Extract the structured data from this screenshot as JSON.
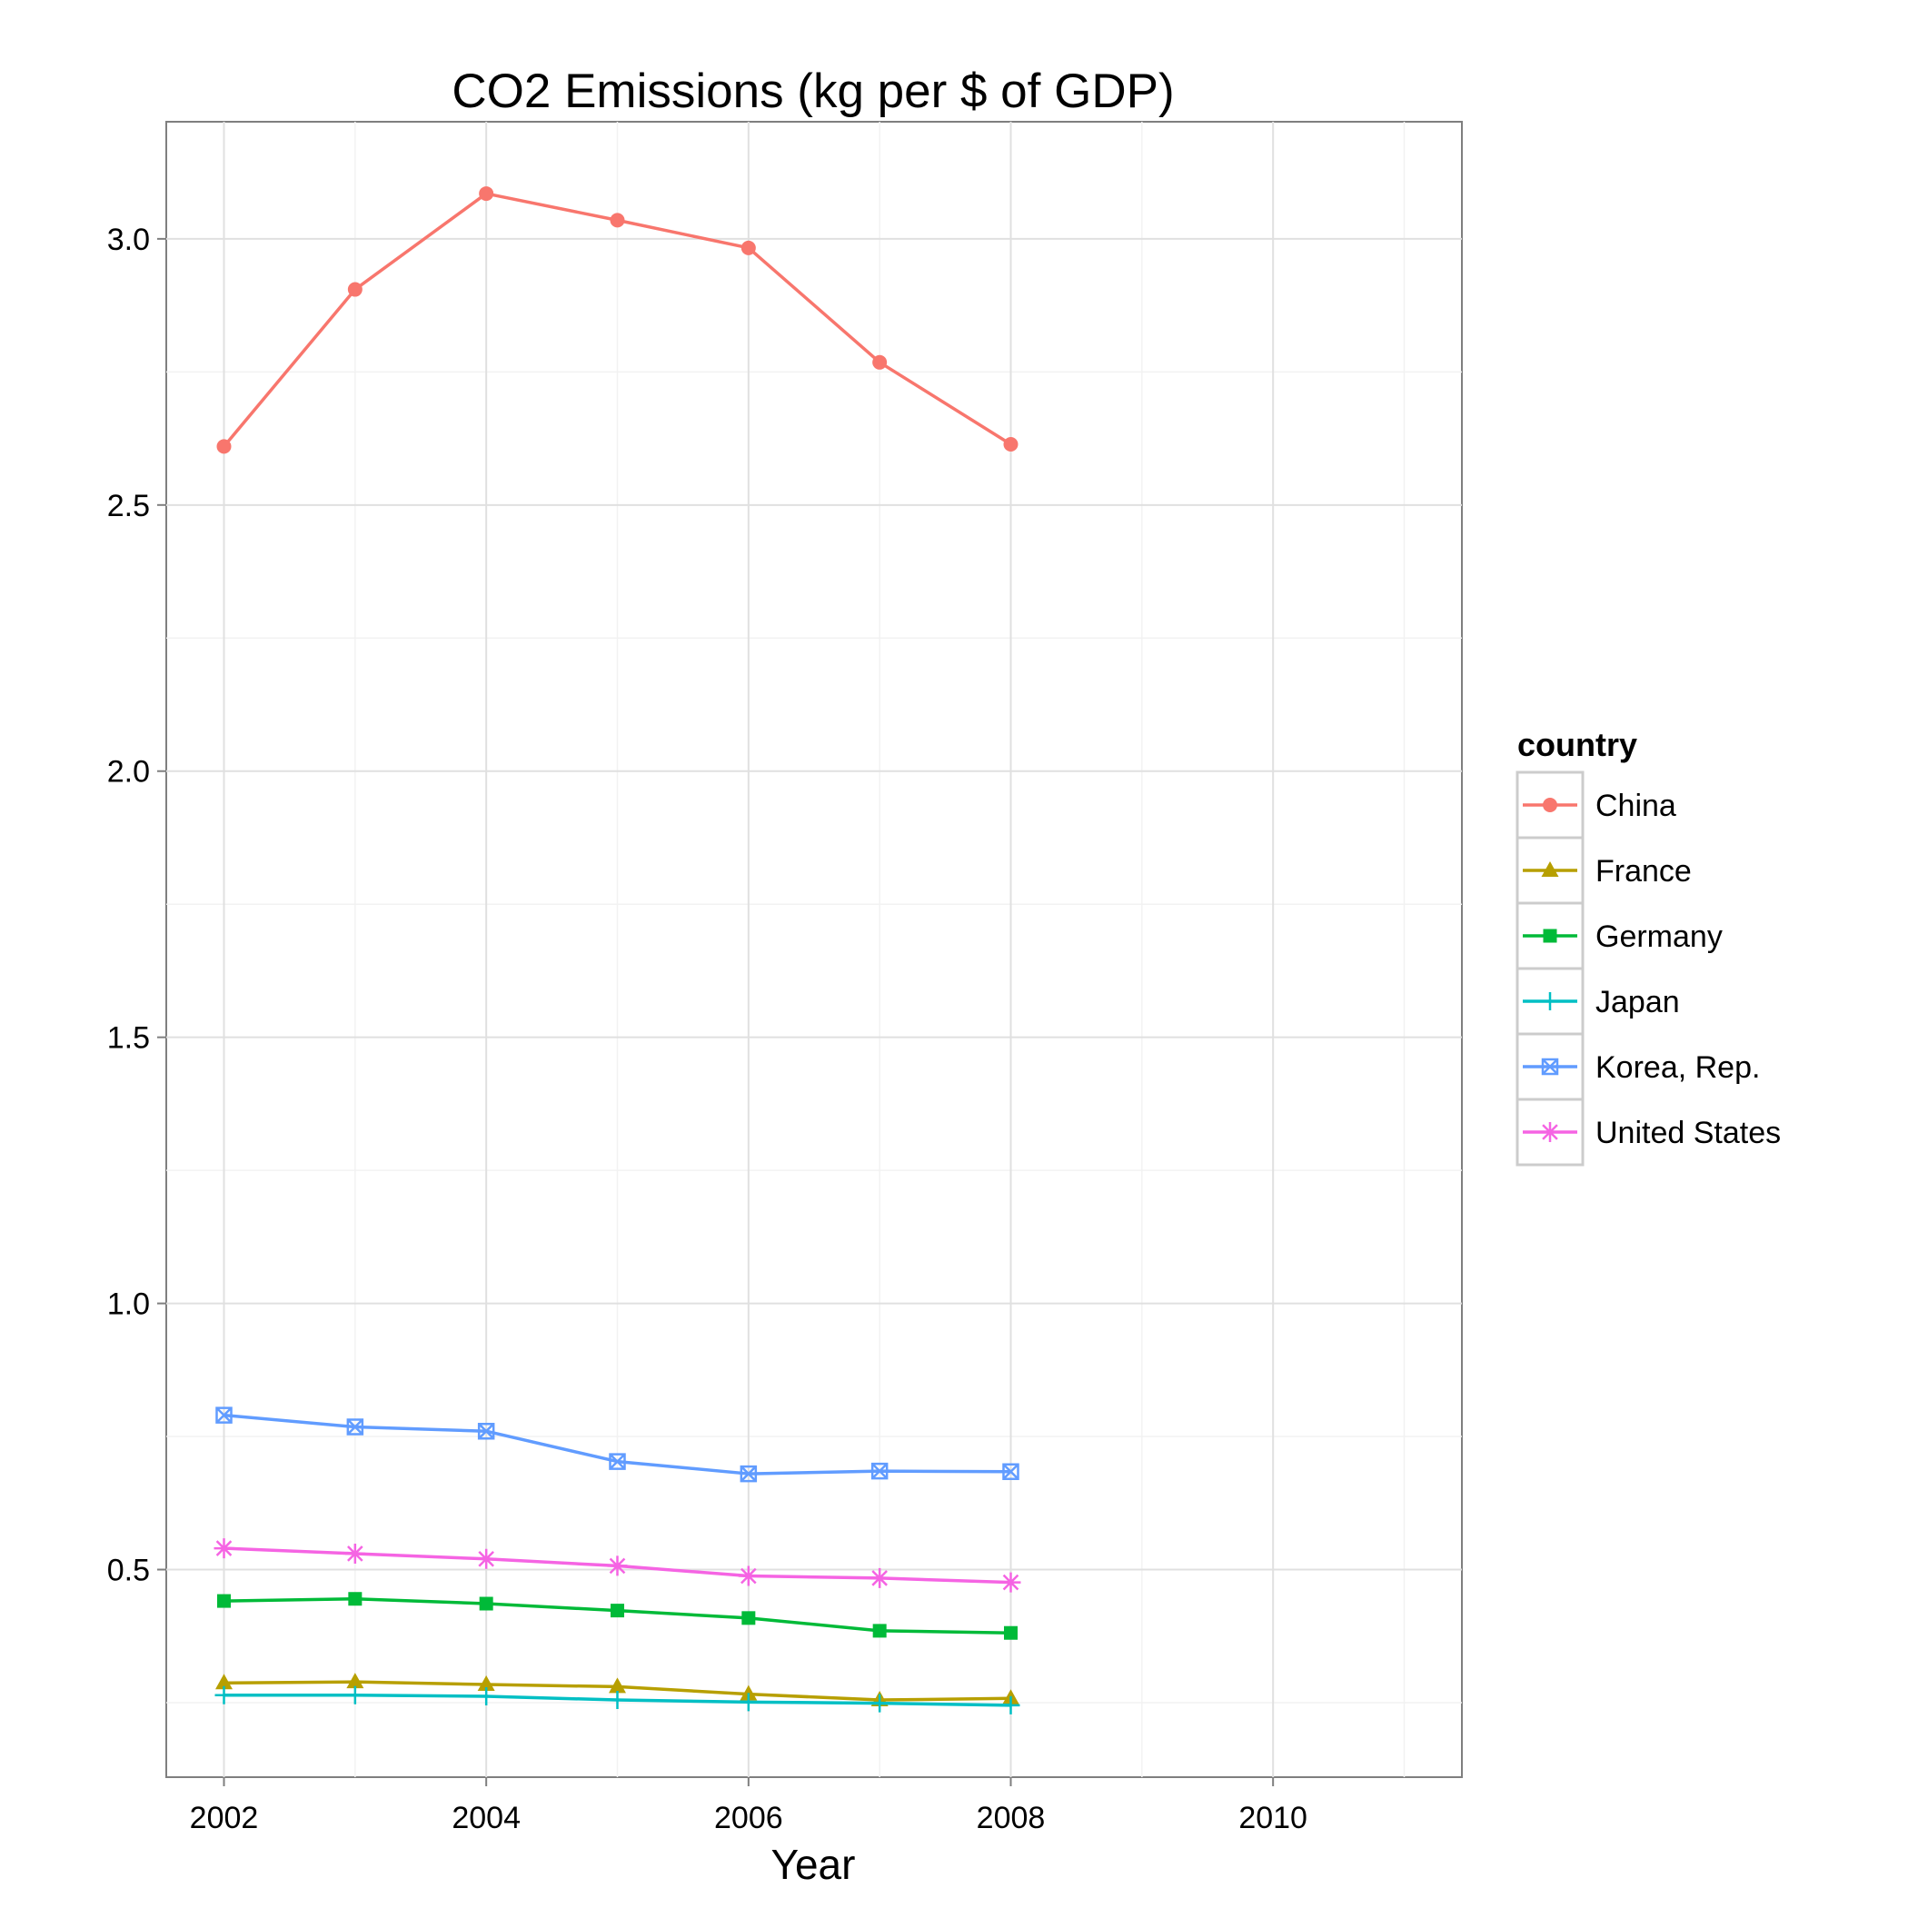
{
  "chart_data": {
    "type": "line",
    "title": "CO2 Emissions (kg per $ of GDP)",
    "xlabel": "Year",
    "ylabel": "",
    "x": [
      2002,
      2003,
      2004,
      2005,
      2006,
      2007,
      2008
    ],
    "xlim": [
      2001.56,
      2011.44
    ],
    "ylim": [
      0.11,
      3.22
    ],
    "x_ticks": [
      "2002",
      "2004",
      "2006",
      "2008",
      "2010"
    ],
    "y_ticks": [
      "0.5",
      "1.0",
      "1.5",
      "2.0",
      "2.5",
      "3.0"
    ],
    "grid": true,
    "legend": {
      "title": "country",
      "placement": "right"
    },
    "series": [
      {
        "name": "China",
        "color": "#F8766D",
        "marker": "circle",
        "values": [
          2.61,
          2.905,
          3.085,
          3.035,
          2.983,
          2.768,
          2.614
        ]
      },
      {
        "name": "France",
        "color": "#B79F00",
        "marker": "triangle",
        "values": [
          0.287,
          0.289,
          0.284,
          0.28,
          0.266,
          0.255,
          0.258
        ]
      },
      {
        "name": "Germany",
        "color": "#00BA38",
        "marker": "square",
        "values": [
          0.441,
          0.445,
          0.436,
          0.423,
          0.409,
          0.385,
          0.381
        ]
      },
      {
        "name": "Japan",
        "color": "#00BFC4",
        "marker": "plus",
        "values": [
          0.264,
          0.264,
          0.262,
          0.255,
          0.251,
          0.249,
          0.245
        ]
      },
      {
        "name": "Korea, Rep.",
        "color": "#619CFF",
        "marker": "square-cross",
        "values": [
          0.79,
          0.768,
          0.76,
          0.703,
          0.68,
          0.685,
          0.684
        ]
      },
      {
        "name": "United States",
        "color": "#F564E3",
        "marker": "asterisk",
        "values": [
          0.54,
          0.53,
          0.52,
          0.507,
          0.488,
          0.484,
          0.476
        ]
      }
    ]
  }
}
